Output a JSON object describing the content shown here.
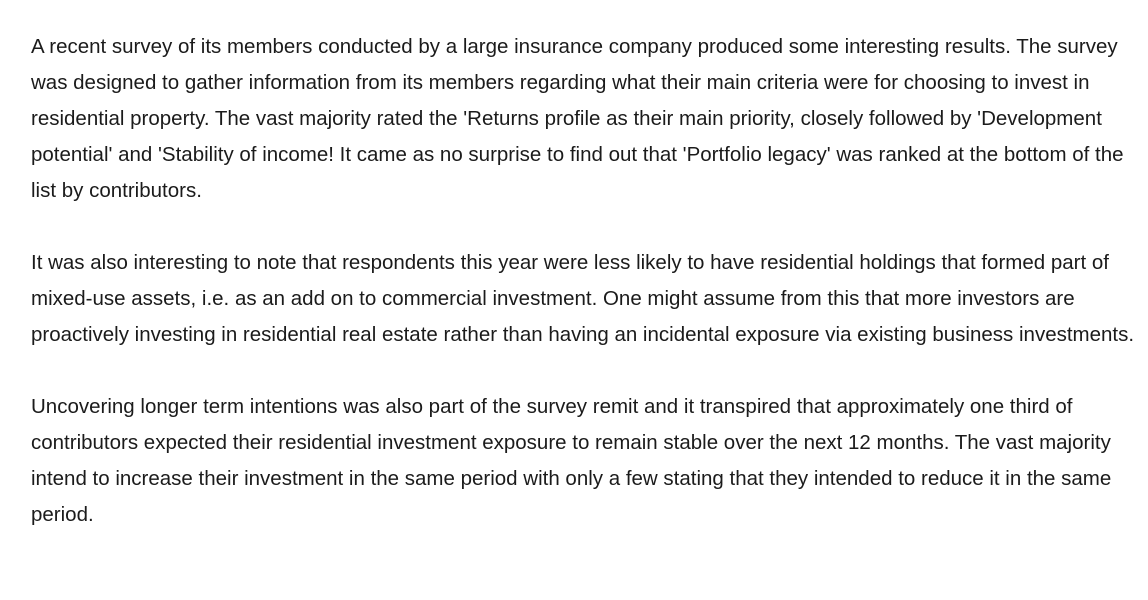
{
  "article": {
    "paragraphs": [
      "A recent survey of its members conducted by a large insurance company produced some interesting results. The survey was designed to gather information from its members regarding what their main criteria were for choosing to invest in residential property. The vast majority rated the 'Returns profile as their main priority, closely followed by 'Development potential' and 'Stability of income! It came as no surprise to find out that 'Portfolio legacy' was ranked at the bottom of the list by contributors.",
      "It was also interesting to note that respondents this year were less likely to have residential holdings that formed part of mixed-use assets, i.e. as an add on to commercial investment. One might assume from this that more investors are proactively investing in residential real estate rather than having an incidental exposure via existing business investments.",
      "Uncovering longer term intentions was also part of the survey remit and it transpired that approximately one third of contributors expected their residential investment exposure to remain stable over the next 12 months. The vast majority intend to increase their investment in the same period with only a few stating that they intended to reduce it in the same period."
    ]
  }
}
